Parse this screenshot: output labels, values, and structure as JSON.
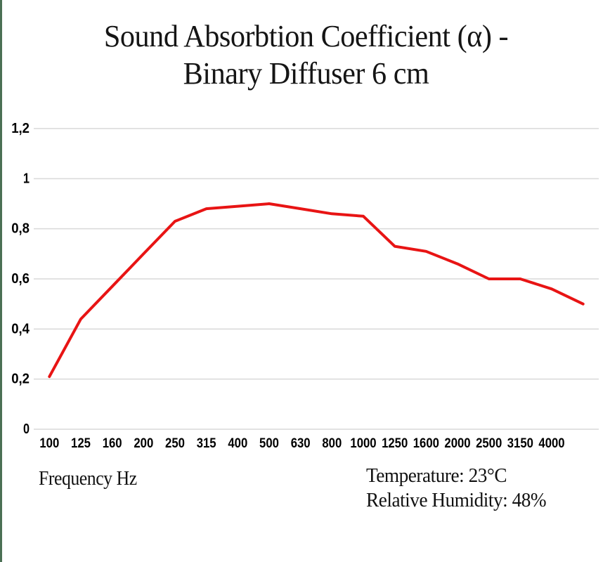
{
  "page": {
    "background": "#ffffff",
    "left_border_color": "#4b7055"
  },
  "header": {
    "title_line1": "Sound Absorbtion Coefficient (α) -",
    "title_line2": "Binary Diffuser 6 cm"
  },
  "chart_data": {
    "type": "line",
    "title": "Sound Absorbtion Coefficient (α) - Binary Diffuser 6 cm",
    "xlabel": "Frequency Hz",
    "ylabel": "",
    "categories": [
      "100",
      "125",
      "160",
      "200",
      "250",
      "315",
      "400",
      "500",
      "630",
      "800",
      "1000",
      "1250",
      "1600",
      "2000",
      "2500",
      "3150",
      "4000",
      ""
    ],
    "values": [
      0.21,
      0.44,
      0.57,
      0.7,
      0.83,
      0.88,
      0.89,
      0.9,
      0.88,
      0.86,
      0.85,
      0.73,
      0.71,
      0.66,
      0.6,
      0.6,
      0.56,
      0.5
    ],
    "series_name": "Sound Absorption Coefficient",
    "ylim": [
      0,
      1.2
    ],
    "y_ticks": [
      {
        "value": 0,
        "label": "0"
      },
      {
        "value": 0.2,
        "label": "0,2"
      },
      {
        "value": 0.4,
        "label": "0,4"
      },
      {
        "value": 0.6,
        "label": "0,6"
      },
      {
        "value": 0.8,
        "label": "0,8"
      },
      {
        "value": 1,
        "label": "1"
      },
      {
        "value": 1.2,
        "label": "1,2"
      }
    ],
    "grid": "horizontal",
    "grid_color": "#d9d9d9",
    "line_color": "#e81414",
    "line_width": 4,
    "legend": "none"
  },
  "annotations": {
    "temperature": "Temperature: 23°C",
    "humidity": "Relative Humidity: 48%"
  }
}
